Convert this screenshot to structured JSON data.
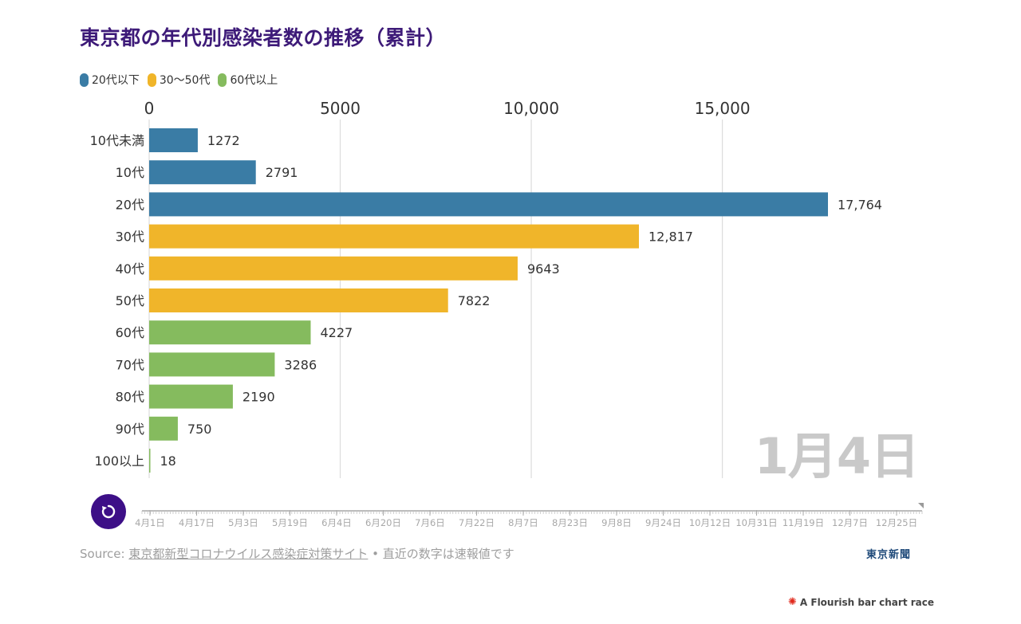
{
  "title": "東京都の年代別感染者数の推移（累計）",
  "legend": [
    {
      "label": "20代以下",
      "color": "#3a7ca5"
    },
    {
      "label": "30〜50代",
      "color": "#f0b52a"
    },
    {
      "label": "60代以上",
      "color": "#85bb5e"
    }
  ],
  "chart_data": {
    "type": "bar",
    "orientation": "horizontal",
    "categories": [
      "10代未満",
      "10代",
      "20代",
      "30代",
      "40代",
      "50代",
      "60代",
      "70代",
      "80代",
      "90代",
      "100以上"
    ],
    "values": [
      1272,
      2791,
      17764,
      12817,
      9643,
      7822,
      4227,
      3286,
      2190,
      750,
      18
    ],
    "value_labels": [
      "1272",
      "2791",
      "17,764",
      "12,817",
      "9643",
      "7822",
      "4227",
      "3286",
      "2190",
      "750",
      "18"
    ],
    "groups": [
      0,
      0,
      0,
      1,
      1,
      1,
      2,
      2,
      2,
      2,
      2
    ],
    "x_ticks": [
      {
        "value": 0,
        "label": "0"
      },
      {
        "value": 5000,
        "label": "5000"
      },
      {
        "value": 10000,
        "label": "10,000"
      },
      {
        "value": 15000,
        "label": "15,000"
      }
    ],
    "xlim": [
      0,
      17764
    ],
    "grid": true,
    "legend_position": "top-left"
  },
  "current_date": "1月4日",
  "timeline": {
    "labels": [
      "4月1日",
      "4月17日",
      "5月3日",
      "5月19日",
      "6月4日",
      "6月20日",
      "7月6日",
      "7月22日",
      "8月7日",
      "8月23日",
      "9月8日",
      "9月24日",
      "10月12日",
      "10月31日",
      "11月19日",
      "12月7日",
      "12月25日"
    ]
  },
  "source": {
    "prefix": "Source:",
    "link_text": "東京都新型コロナウイルス感染症対策サイト",
    "suffix": "• 直近の数字は速報値です"
  },
  "brand": "東京新聞",
  "flourish": "A Flourish bar chart race",
  "replay_icon": "replay-icon"
}
